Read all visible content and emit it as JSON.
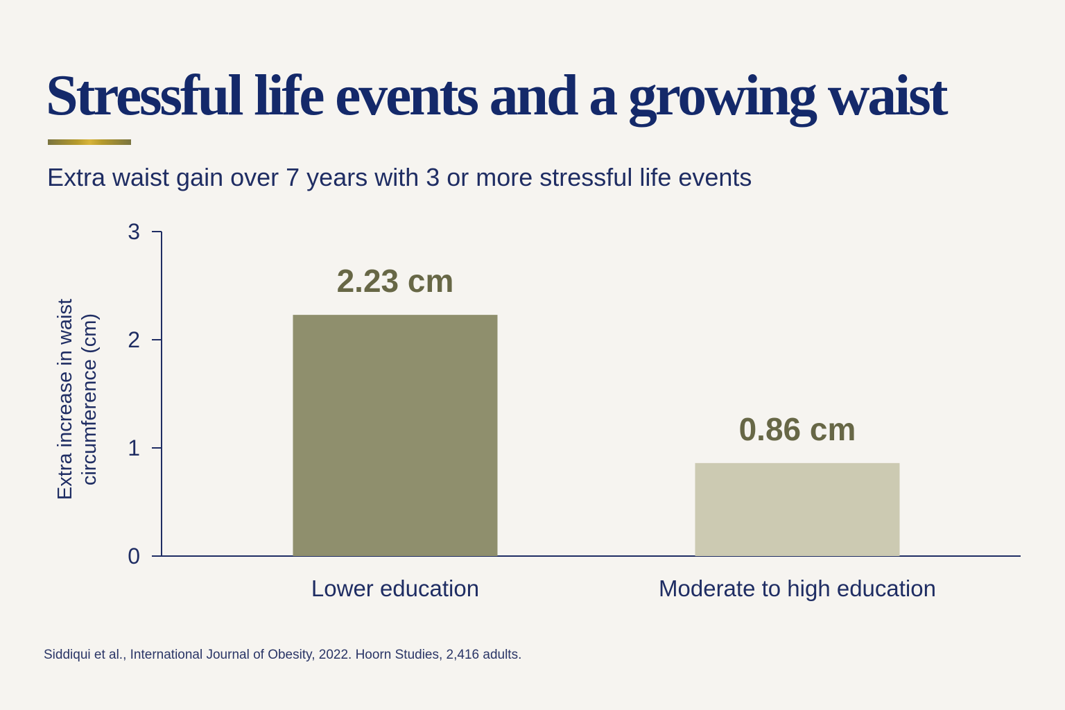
{
  "title": "Stressful life events and a growing waist",
  "subtitle": "Extra waist gain over 7 years with 3 or more stressful life events",
  "source": "Siddiqui et al., International Journal of Obesity, 2022. Hoorn Studies, 2,416 adults.",
  "colors": {
    "title": "#14296a",
    "axis": "#1f2d63",
    "bar_lower": "#8f8f6d",
    "bar_moderate": "#cccab2",
    "value_label": "#676746",
    "background": "#f6f4f0"
  },
  "chart_data": {
    "type": "bar",
    "title": "Stressful life events and a growing waist",
    "subtitle": "Extra waist gain over 7 years with 3 or more stressful life events",
    "categories": [
      "Lower education",
      "Moderate to high education"
    ],
    "values": [
      2.23,
      0.86
    ],
    "value_labels": [
      "2.23 cm",
      "0.86 cm"
    ],
    "bar_colors": [
      "#8f8f6d",
      "#cccab2"
    ],
    "ylabel_lines": [
      "Extra increase in waist",
      "circumference (cm)"
    ],
    "xlabel": "",
    "ylim": [
      0,
      3
    ],
    "yticks": [
      0,
      1,
      2,
      3
    ],
    "ytick_labels": [
      "0",
      "1",
      "2",
      "3"
    ],
    "grid": false,
    "legend": "none"
  }
}
